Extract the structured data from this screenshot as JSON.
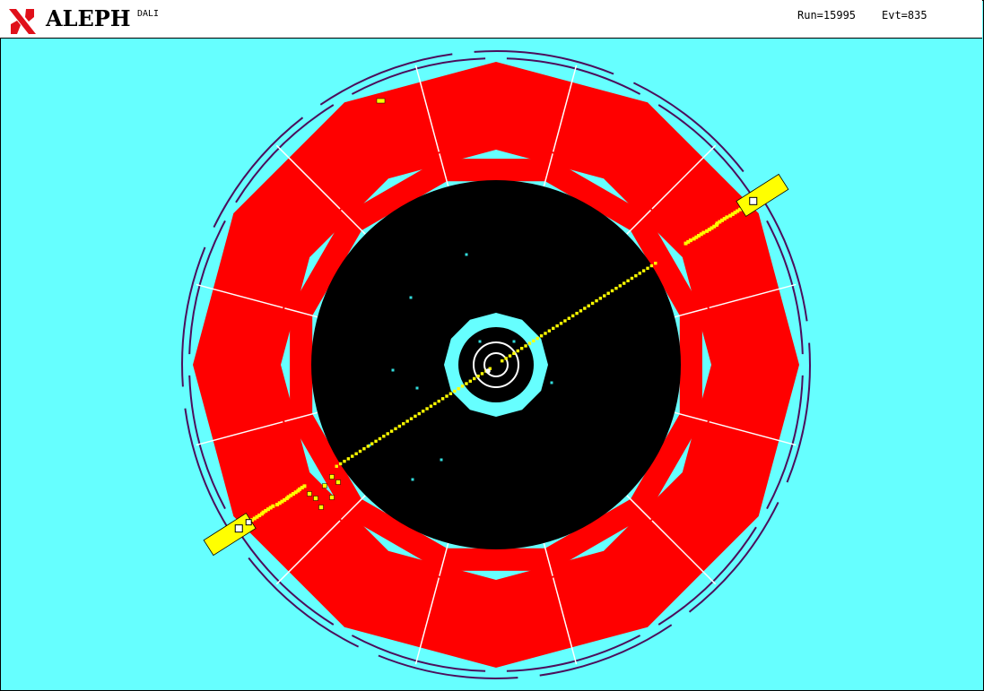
{
  "header": {
    "experiment": "ALEPH",
    "program": "DALI",
    "run_text": "Run=15995",
    "event_text": "Evt=835"
  },
  "icons": {
    "logo": "aleph-letter-logo"
  },
  "colors": {
    "background": "#66ffff",
    "header_background": "#ffffff",
    "calorimeter": "#ff0000",
    "tracking_chamber": "#000000",
    "track": "#ffff00",
    "muon_chamber": "#4b0f5c",
    "cluster_marker": "#ffffff",
    "scattered_hit": "#33dddd",
    "logo": "#e0101a"
  }
}
